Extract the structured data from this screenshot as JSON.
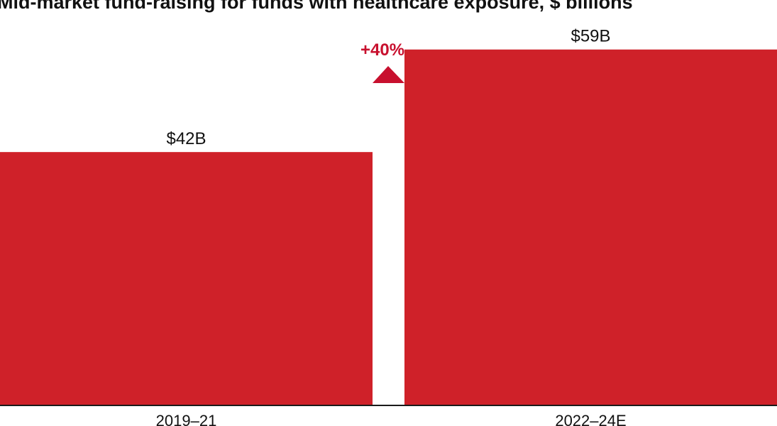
{
  "chart_data": {
    "type": "bar",
    "title": "Mid-market fund-raising for funds with healthcare exposure, $ billions",
    "categories": [
      "2019–21",
      "2022–24E"
    ],
    "values": [
      42,
      59
    ],
    "value_labels": [
      "$42B",
      "$59B"
    ],
    "change_label": "+40%",
    "ylim": [
      0,
      62.5
    ],
    "grid": false,
    "legend": "none",
    "colors": {
      "bar": "#cf2129",
      "accent": "#c8102e",
      "text": "#111111",
      "axis": "#1a1a1a"
    }
  }
}
